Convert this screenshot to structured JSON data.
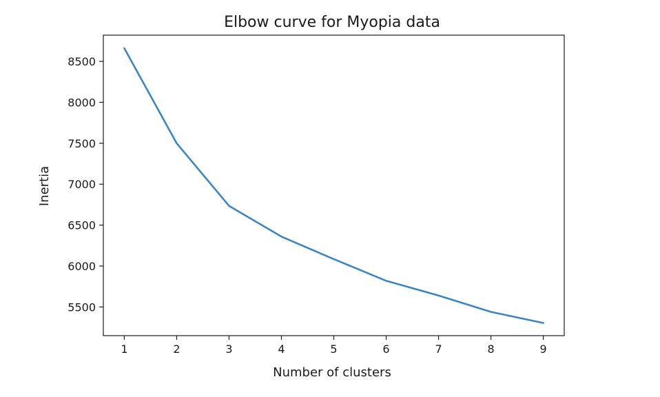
{
  "chart_data": {
    "type": "line",
    "title": "Elbow curve for Myopia data",
    "xlabel": "Number of clusters",
    "ylabel": "Inertia",
    "x": [
      1,
      2,
      3,
      4,
      5,
      6,
      7,
      8,
      9
    ],
    "series": [
      {
        "values": [
          8660,
          7500,
          6735,
          6360,
          6085,
          5820,
          5640,
          5440,
          5305
        ],
        "color": "#3a86c4"
      }
    ],
    "xticks": [
      "1",
      "2",
      "3",
      "4",
      "5",
      "6",
      "7",
      "8",
      "9"
    ],
    "yticks": [
      "5500",
      "6000",
      "6500",
      "7000",
      "7500",
      "8000",
      "8500"
    ],
    "xlim": [
      0.6,
      9.4
    ],
    "ylim": [
      5150,
      8820
    ],
    "grid": false,
    "legend": false
  }
}
